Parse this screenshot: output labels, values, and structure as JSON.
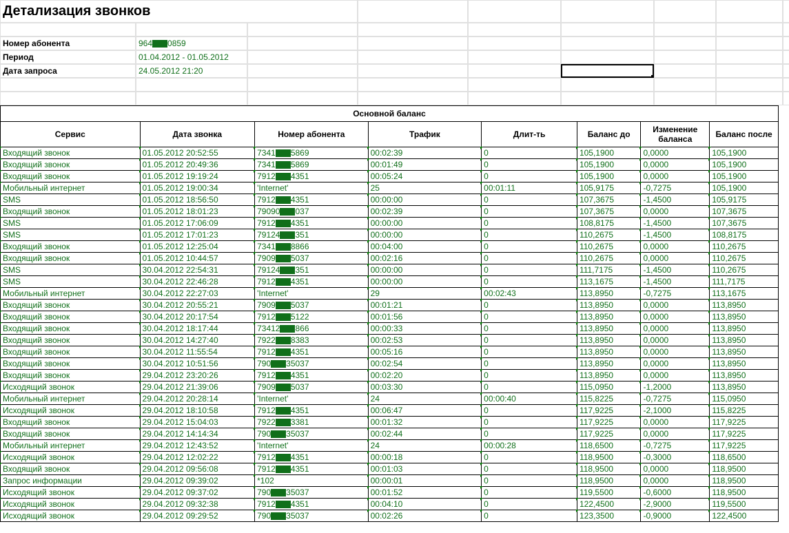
{
  "title": "Детализация звонков",
  "header_rows": [
    {
      "label": "Номер абонента",
      "value": "964████0859",
      "redact": true,
      "pre": "964",
      "post": "0859"
    },
    {
      "label": "Период",
      "value": "01.04.2012 - 01.05.2012"
    },
    {
      "label": "Дата запроса",
      "value": "24.05.2012 21:20"
    }
  ],
  "section_title": "Основной баланс",
  "columns": [
    "Сервис",
    "Дата звонка",
    "Номер абонента",
    "Трафик",
    "Длит-ть",
    "Баланс до",
    "Изменение баланса",
    "Баланс после"
  ],
  "rows": [
    {
      "svc": "Входящий звонок",
      "dt": "01.05.2012 20:52:55",
      "num_pre": "7341",
      "num_post": "5869",
      "num_redact": true,
      "traf": "00:02:39",
      "dur": "0",
      "bb": "105,1900",
      "bc": "0,0000",
      "ba": "105,1900"
    },
    {
      "svc": "Входящий звонок",
      "dt": "01.05.2012 20:49:36",
      "num_pre": "7341",
      "num_post": "5869",
      "num_redact": true,
      "traf": "00:01:49",
      "dur": "0",
      "bb": "105,1900",
      "bc": "0,0000",
      "ba": "105,1900"
    },
    {
      "svc": "Входящий звонок",
      "dt": "01.05.2012 19:19:24",
      "num_pre": "7912",
      "num_post": "4351",
      "num_redact": true,
      "traf": "00:05:24",
      "dur": "0",
      "bb": "105,1900",
      "bc": "0,0000",
      "ba": "105,1900"
    },
    {
      "svc": "Мобильный интернет",
      "dt": "01.05.2012 19:00:34",
      "num_pre": "'Internet'",
      "num_post": "",
      "num_redact": false,
      "traf": "25",
      "dur": "00:01:11",
      "bb": "105,9175",
      "bc": "-0,7275",
      "ba": "105,1900"
    },
    {
      "svc": "SMS",
      "dt": "01.05.2012 18:56:50",
      "num_pre": "7912",
      "num_post": "4351",
      "num_redact": true,
      "traf": "00:00:00",
      "dur": "0",
      "bb": "107,3675",
      "bc": "-1,4500",
      "ba": "105,9175"
    },
    {
      "svc": "Входящий звонок",
      "dt": "01.05.2012 18:01:23",
      "num_pre": "79090",
      "num_post": "037",
      "num_redact": true,
      "traf": "00:02:39",
      "dur": "0",
      "bb": "107,3675",
      "bc": "0,0000",
      "ba": "107,3675"
    },
    {
      "svc": "SMS",
      "dt": "01.05.2012 17:06:09",
      "num_pre": "7912",
      "num_post": "4351",
      "num_redact": true,
      "traf": "00:00:00",
      "dur": "0",
      "bb": "108,8175",
      "bc": "-1,4500",
      "ba": "107,3675"
    },
    {
      "svc": "SMS",
      "dt": "01.05.2012 17:01:23",
      "num_pre": "79124",
      "num_post": "351",
      "num_redact": true,
      "traf": "00:00:00",
      "dur": "0",
      "bb": "110,2675",
      "bc": "-1,4500",
      "ba": "108,8175"
    },
    {
      "svc": "Входящий звонок",
      "dt": "01.05.2012 12:25:04",
      "num_pre": "7341",
      "num_post": "8866",
      "num_redact": true,
      "traf": "00:04:00",
      "dur": "0",
      "bb": "110,2675",
      "bc": "0,0000",
      "ba": "110,2675"
    },
    {
      "svc": "Входящий звонок",
      "dt": "01.05.2012 10:44:57",
      "num_pre": "7909",
      "num_post": "5037",
      "num_redact": true,
      "traf": "00:02:16",
      "dur": "0",
      "bb": "110,2675",
      "bc": "0,0000",
      "ba": "110,2675"
    },
    {
      "svc": "SMS",
      "dt": "30.04.2012 22:54:31",
      "num_pre": "79124",
      "num_post": "351",
      "num_redact": true,
      "traf": "00:00:00",
      "dur": "0",
      "bb": "111,7175",
      "bc": "-1,4500",
      "ba": "110,2675"
    },
    {
      "svc": "SMS",
      "dt": "30.04.2012 22:46:28",
      "num_pre": "7912",
      "num_post": "4351",
      "num_redact": true,
      "traf": "00:00:00",
      "dur": "0",
      "bb": "113,1675",
      "bc": "-1,4500",
      "ba": "111,7175"
    },
    {
      "svc": "Мобильный интернет",
      "dt": "30.04.2012 22:27:03",
      "num_pre": "'Internet'",
      "num_post": "",
      "num_redact": false,
      "traf": "29",
      "dur": "00:02:43",
      "bb": "113,8950",
      "bc": "-0,7275",
      "ba": "113,1675"
    },
    {
      "svc": "Входящий звонок",
      "dt": "30.04.2012 20:55:21",
      "num_pre": "7909",
      "num_post": "5037",
      "num_redact": true,
      "traf": "00:01:21",
      "dur": "0",
      "bb": "113,8950",
      "bc": "0,0000",
      "ba": "113,8950"
    },
    {
      "svc": "Входящий звонок",
      "dt": "30.04.2012 20:17:54",
      "num_pre": "7912",
      "num_post": "5122",
      "num_redact": true,
      "traf": "00:01:56",
      "dur": "0",
      "bb": "113,8950",
      "bc": "0,0000",
      "ba": "113,8950"
    },
    {
      "svc": "Входящий звонок",
      "dt": "30.04.2012 18:17:44",
      "num_pre": "73412",
      "num_post": "866",
      "num_redact": true,
      "traf": "00:00:33",
      "dur": "0",
      "bb": "113,8950",
      "bc": "0,0000",
      "ba": "113,8950"
    },
    {
      "svc": "Входящий звонок",
      "dt": "30.04.2012 14:27:40",
      "num_pre": "7922",
      "num_post": "8383",
      "num_redact": true,
      "traf": "00:02:53",
      "dur": "0",
      "bb": "113,8950",
      "bc": "0,0000",
      "ba": "113,8950"
    },
    {
      "svc": "Входящий звонок",
      "dt": "30.04.2012 11:55:54",
      "num_pre": "7912",
      "num_post": "4351",
      "num_redact": true,
      "traf": "00:05:16",
      "dur": "0",
      "bb": "113,8950",
      "bc": "0,0000",
      "ba": "113,8950"
    },
    {
      "svc": "Входящий звонок",
      "dt": "30.04.2012 10:51:56",
      "num_pre": "790",
      "num_post": "35037",
      "num_redact": true,
      "traf": "00:02:54",
      "dur": "0",
      "bb": "113,8950",
      "bc": "0,0000",
      "ba": "113,8950"
    },
    {
      "svc": "Входящий звонок",
      "dt": "29.04.2012 23:20:26",
      "num_pre": "7912",
      "num_post": "4351",
      "num_redact": true,
      "traf": "00:02:20",
      "dur": "0",
      "bb": "113,8950",
      "bc": "0,0000",
      "ba": "113,8950"
    },
    {
      "svc": "Исходящий звонок",
      "dt": "29.04.2012 21:39:06",
      "num_pre": "7909",
      "num_post": "5037",
      "num_redact": true,
      "traf": "00:03:30",
      "dur": "0",
      "bb": "115,0950",
      "bc": "-1,2000",
      "ba": "113,8950"
    },
    {
      "svc": "Мобильный интернет",
      "dt": "29.04.2012 20:28:14",
      "num_pre": "'Internet'",
      "num_post": "",
      "num_redact": false,
      "traf": "24",
      "dur": "00:00:40",
      "bb": "115,8225",
      "bc": "-0,7275",
      "ba": "115,0950"
    },
    {
      "svc": "Исходящий звонок",
      "dt": "29.04.2012 18:10:58",
      "num_pre": "7912",
      "num_post": "4351",
      "num_redact": true,
      "traf": "00:06:47",
      "dur": "0",
      "bb": "117,9225",
      "bc": "-2,1000",
      "ba": "115,8225"
    },
    {
      "svc": "Входящий звонок",
      "dt": "29.04.2012 15:04:03",
      "num_pre": "7922",
      "num_post": "3381",
      "num_redact": true,
      "traf": "00:01:32",
      "dur": "0",
      "bb": "117,9225",
      "bc": "0,0000",
      "ba": "117,9225"
    },
    {
      "svc": "Входящий звонок",
      "dt": "29.04.2012 14:14:34",
      "num_pre": "790",
      "num_post": "35037",
      "num_redact": true,
      "traf": "00:02:44",
      "dur": "0",
      "bb": "117,9225",
      "bc": "0,0000",
      "ba": "117,9225"
    },
    {
      "svc": "Мобильный интернет",
      "dt": "29.04.2012 12:43:52",
      "num_pre": "'Internet'",
      "num_post": "",
      "num_redact": false,
      "traf": "24",
      "dur": "00:00:28",
      "bb": "118,6500",
      "bc": "-0,7275",
      "ba": "117,9225"
    },
    {
      "svc": "Исходящий звонок",
      "dt": "29.04.2012 12:02:22",
      "num_pre": "7912",
      "num_post": "4351",
      "num_redact": true,
      "traf": "00:00:18",
      "dur": "0",
      "bb": "118,9500",
      "bc": "-0,3000",
      "ba": "118,6500"
    },
    {
      "svc": "Входящий звонок",
      "dt": "29.04.2012 09:56:08",
      "num_pre": "7912",
      "num_post": "4351",
      "num_redact": true,
      "traf": "00:01:03",
      "dur": "0",
      "bb": "118,9500",
      "bc": "0,0000",
      "ba": "118,9500"
    },
    {
      "svc": "Запрос информации",
      "dt": "29.04.2012 09:39:02",
      "num_pre": "*102",
      "num_post": "",
      "num_redact": false,
      "traf": "00:00:01",
      "dur": "0",
      "bb": "118,9500",
      "bc": "0,0000",
      "ba": "118,9500"
    },
    {
      "svc": "Исходящий звонок",
      "dt": "29.04.2012 09:37:02",
      "num_pre": "790",
      "num_post": "35037",
      "num_redact": true,
      "traf": "00:01:52",
      "dur": "0",
      "bb": "119,5500",
      "bc": "-0,6000",
      "ba": "118,9500"
    },
    {
      "svc": "Исходящий звонок",
      "dt": "29.04.2012 09:32:38",
      "num_pre": "7912",
      "num_post": "4351",
      "num_redact": true,
      "traf": "00:04:10",
      "dur": "0",
      "bb": "122,4500",
      "bc": "-2,9000",
      "ba": "119,5500"
    },
    {
      "svc": "Исходящий звонок",
      "dt": "29.04.2012 09:29:52",
      "num_pre": "790",
      "num_post": "35037",
      "num_redact": true,
      "traf": "00:02:26",
      "dur": "0",
      "bb": "123,3500",
      "bc": "-0,9000",
      "ba": "122,4500"
    }
  ]
}
